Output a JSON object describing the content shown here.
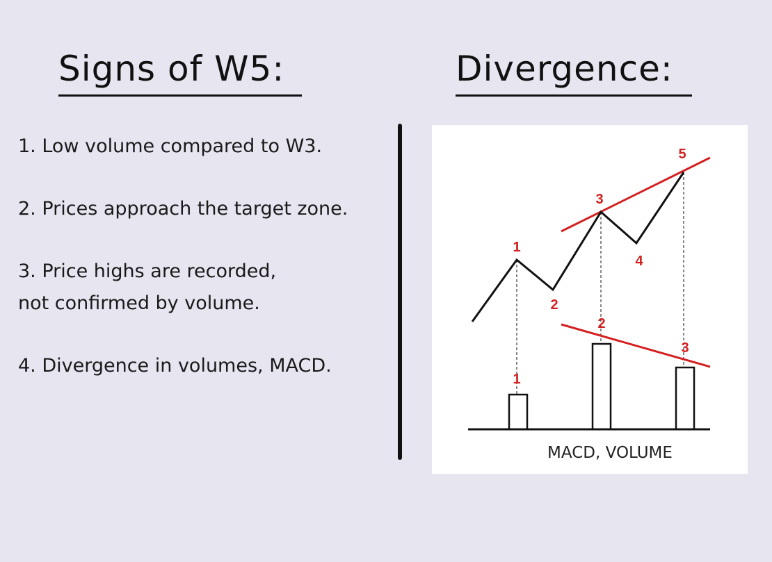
{
  "left_section": {
    "title": "Signs of W5:",
    "items": [
      {
        "lines": [
          "1. Low volume compared to W3."
        ]
      },
      {
        "lines": [
          "2. Prices approach the target zone."
        ]
      },
      {
        "lines": [
          "3. Price highs are recorded,",
          "not confirmed by volume."
        ]
      },
      {
        "lines": [
          "4. Divergence in volumes, MACD."
        ]
      }
    ]
  },
  "right_section": {
    "title": "Divergence:",
    "diagram": {
      "price_wave_labels": [
        "1",
        "2",
        "3",
        "4",
        "5"
      ],
      "volume_bar_labels": [
        "1",
        "2",
        "3"
      ],
      "caption": "MACD, VOLUME",
      "colors": {
        "wave": "#111111",
        "trendline": "#d42020",
        "label": "#d42020"
      }
    }
  }
}
